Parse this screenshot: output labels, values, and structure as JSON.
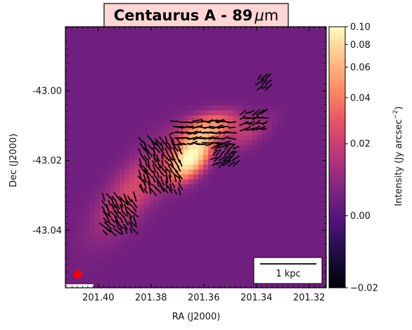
{
  "chart_data": {
    "type": "heatmap",
    "title": "Centaurus A - 89",
    "title_unit_mu": "μ",
    "title_unit": "m",
    "title_box_color": "#ffd6d6",
    "xlabel": "RA (J2000)",
    "ylabel": "Dec (J2000)",
    "x_ticks": [
      "201.40",
      "201.38",
      "201.36",
      "201.34",
      "201.32"
    ],
    "x_tick_values": [
      201.4,
      201.38,
      201.36,
      201.34,
      201.32
    ],
    "xlim": [
      201.4125,
      201.3135
    ],
    "y_ticks": [
      "-43.00",
      "-43.02",
      "-43.04"
    ],
    "y_tick_values": [
      -43.0,
      -43.02,
      -43.04
    ],
    "ylim": [
      -43.0565,
      -42.9816
    ],
    "colorbar": {
      "label_text": "Intensity (Jy arcsec",
      "label_exp": "−2",
      "label_close": ")",
      "ticks": [
        "0.10",
        "0.08",
        "0.06",
        "0.04",
        "0.02",
        "0.00",
        "−0.02"
      ],
      "tick_values": [
        0.1,
        0.08,
        0.06,
        0.04,
        0.02,
        0.0,
        -0.02
      ],
      "colormap": "magma",
      "scale": "asinh"
    },
    "background_value": 0.004,
    "scale_bar": {
      "label": "1 kpc"
    },
    "beam_marker_color": "#ff0000",
    "vector_color": "#000000",
    "emission_components": [
      {
        "ra": 201.365,
        "dec": -43.019,
        "peak": 0.1,
        "sigma_major": 0.0055,
        "sigma_minor": 0.003,
        "pa_deg": 35
      },
      {
        "ra": 201.358,
        "dec": -43.0105,
        "peak": 0.045,
        "sigma_major": 0.007,
        "sigma_minor": 0.0025,
        "pa_deg": 10
      },
      {
        "ra": 201.386,
        "dec": -43.028,
        "peak": 0.02,
        "sigma_major": 0.012,
        "sigma_minor": 0.0045,
        "pa_deg": 40
      },
      {
        "ra": 201.343,
        "dec": -43.012,
        "peak": 0.012,
        "sigma_major": 0.006,
        "sigma_minor": 0.0025,
        "pa_deg": 25
      }
    ],
    "polarization_regions": [
      {
        "ra": 201.36,
        "dec": -43.012,
        "n_ra": 14,
        "n_dec": 5,
        "step": 0.0016,
        "angle_deg": 5
      },
      {
        "ra": 201.3765,
        "dec": -43.0215,
        "n_ra": 10,
        "n_dec": 10,
        "step": 0.0016,
        "angle_deg": -60
      },
      {
        "ra": 201.392,
        "dec": -43.0355,
        "n_ra": 8,
        "n_dec": 7,
        "step": 0.0016,
        "angle_deg": -55
      },
      {
        "ra": 201.341,
        "dec": -43.0085,
        "n_ra": 6,
        "n_dec": 4,
        "step": 0.0016,
        "angle_deg": 20
      },
      {
        "ra": 201.352,
        "dec": -43.0185,
        "n_ra": 6,
        "n_dec": 4,
        "step": 0.0016,
        "angle_deg": 35
      },
      {
        "ra": 201.337,
        "dec": -42.9975,
        "n_ra": 3,
        "n_dec": 3,
        "step": 0.0016,
        "angle_deg": 50
      }
    ]
  }
}
